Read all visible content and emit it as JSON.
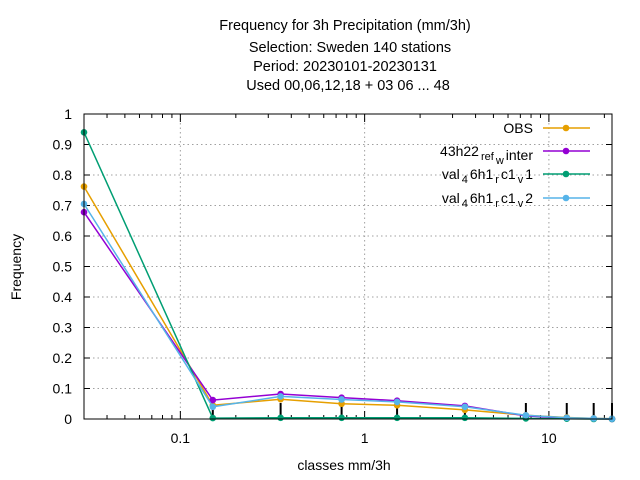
{
  "chart_data": {
    "type": "line",
    "title_lines": [
      "Frequency  for 3h Precipitation (mm/3h)",
      "Selection: Sweden    140 stations",
      "Period: 20230101-20230131",
      "Used  00,06,12,18  + 03 06 ... 48"
    ],
    "xlabel": "classes mm/3h",
    "ylabel": "Frequency",
    "x_scale": "log",
    "xlim": [
      0.03,
      22
    ],
    "ylim": [
      0,
      1
    ],
    "x_ticks": [
      0.1,
      1,
      10
    ],
    "x_tick_labels": [
      "0.1",
      "1",
      "10"
    ],
    "y_ticks": [
      0,
      0.1,
      0.2,
      0.3,
      0.4,
      0.5,
      0.6,
      0.7,
      0.8,
      0.9,
      1
    ],
    "y_tick_labels": [
      "0",
      "0.1",
      "0.2",
      "0.3",
      "0.4",
      "0.5",
      "0.6",
      "0.7",
      "0.8",
      "0.9",
      "1"
    ],
    "grid": true,
    "legend_position": "top-right",
    "x": [
      0.03,
      0.15,
      0.35,
      0.75,
      1.5,
      3.5,
      7.5,
      12.5,
      17.5,
      22
    ],
    "series": [
      {
        "name": "OBS",
        "color": "#e69f00",
        "values": [
          0.762,
          0.045,
          0.065,
          0.05,
          0.045,
          0.03,
          0.012,
          0.005,
          0.002,
          0.001
        ]
      },
      {
        "name": "43h22_ref_winter",
        "legend_parts": [
          [
            "43h22",
            ""
          ],
          [
            "ref",
            "sub"
          ],
          [
            "w",
            "sub"
          ],
          [
            "inter",
            ""
          ]
        ],
        "color": "#9400d3",
        "values": [
          0.678,
          0.062,
          0.082,
          0.07,
          0.06,
          0.043,
          0.01,
          0.003,
          0.001,
          0.0
        ]
      },
      {
        "name": "val_46h1_rc1_v1",
        "legend_parts": [
          [
            "val",
            ""
          ],
          [
            "4",
            "sub"
          ],
          [
            "6h1",
            ""
          ],
          [
            "r",
            "sub"
          ],
          [
            "c1",
            ""
          ],
          [
            "v",
            "sub"
          ],
          [
            "1",
            ""
          ]
        ],
        "color": "#009e73",
        "values": [
          0.94,
          0.003,
          0.004,
          0.004,
          0.004,
          0.004,
          0.002,
          0.001,
          0.0,
          0.0
        ]
      },
      {
        "name": "val_46h1_rc1_v2",
        "legend_parts": [
          [
            "val",
            ""
          ],
          [
            "4",
            "sub"
          ],
          [
            "6h1",
            ""
          ],
          [
            "r",
            "sub"
          ],
          [
            "c1",
            ""
          ],
          [
            "v",
            "sub"
          ],
          [
            "2",
            ""
          ]
        ],
        "color": "#56b4e9",
        "values": [
          0.705,
          0.04,
          0.074,
          0.064,
          0.056,
          0.04,
          0.012,
          0.004,
          0.002,
          0.001
        ]
      }
    ]
  }
}
